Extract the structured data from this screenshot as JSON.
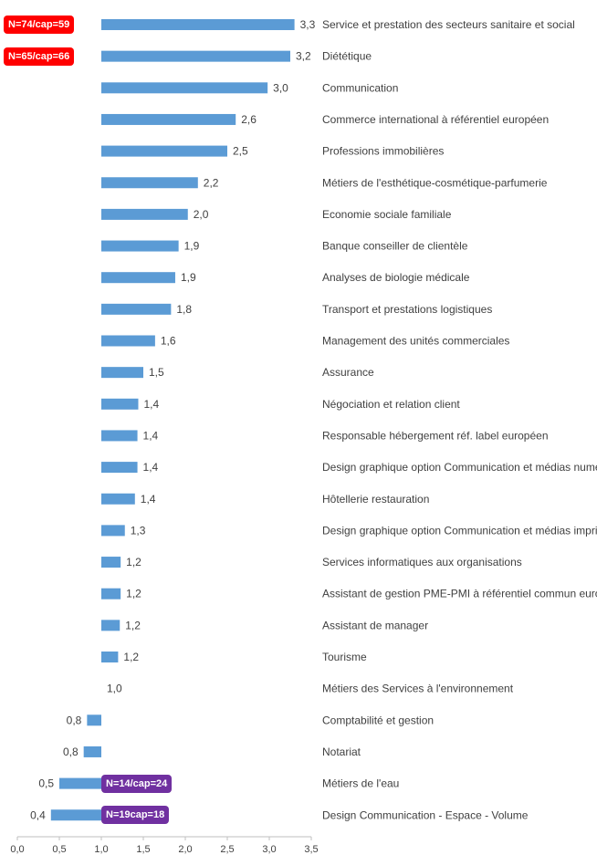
{
  "chart_data": {
    "type": "bar",
    "orientation": "horizontal",
    "baseline": 1.0,
    "xlim": [
      0,
      3.5
    ],
    "xticks": [
      "0,0",
      "0,5",
      "1,0",
      "1,5",
      "2,0",
      "2,5",
      "3,0",
      "3,5"
    ],
    "xtick_values": [
      0,
      0.5,
      1.0,
      1.5,
      2.0,
      2.5,
      3.0,
      3.5
    ],
    "grid": false,
    "categories": [
      "Service et prestation des secteurs sanitaire et social",
      "Diététique",
      "Communication",
      "Commerce international à référentiel européen",
      "Professions immobilières",
      "Métiers de l'esthétique-cosmétique-parfumerie",
      "Economie sociale familiale",
      "Banque conseiller de clientèle",
      "Analyses de biologie médicale",
      "Transport et prestations logistiques",
      "Management des unités commerciales",
      "Assurance",
      "Négociation et relation client",
      "Responsable hébergement réf. label européen",
      "Design graphique option Communication et médias numériques",
      "Hôtellerie restauration",
      "Design graphique option Communication et médias imprimés",
      "Services informatiques aux organisations",
      "Assistant de gestion PME-PMI à référentiel commun européen",
      "Assistant de manager",
      "Tourisme",
      "Métiers des Services à l'environnement",
      "Comptabilité et gestion",
      "Notariat",
      "Métiers de l'eau",
      "Design Communication - Espace - Volume"
    ],
    "values": [
      3.3,
      3.25,
      2.98,
      2.6,
      2.5,
      2.15,
      2.03,
      1.92,
      1.88,
      1.83,
      1.64,
      1.5,
      1.44,
      1.43,
      1.43,
      1.4,
      1.28,
      1.23,
      1.23,
      1.22,
      1.2,
      1.0,
      0.83,
      0.79,
      0.5,
      0.4
    ],
    "value_labels": [
      "3,3",
      "3,2",
      "3,0",
      "2,6",
      "2,5",
      "2,2",
      "2,0",
      "1,9",
      "1,9",
      "1,8",
      "1,6",
      "1,5",
      "1,4",
      "1,4",
      "1,4",
      "1,4",
      "1,3",
      "1,2",
      "1,2",
      "1,2",
      "1,2",
      "1,0",
      "0,8",
      "0,8",
      "0,5",
      "0,4"
    ],
    "bar_color": "#5b9bd5",
    "annotations": [
      {
        "text": "N=74/cap=59",
        "row": 0,
        "color": "#ff0000",
        "anchor": "left"
      },
      {
        "text": "N=65/cap=66",
        "row": 1,
        "color": "#ff0000",
        "anchor": "left"
      },
      {
        "text": "N=14/cap=24",
        "row": 24,
        "color": "#7030a0",
        "anchor": "baseline"
      },
      {
        "text": "N=19cap=18",
        "row": 25,
        "color": "#7030a0",
        "anchor": "baseline"
      }
    ]
  }
}
